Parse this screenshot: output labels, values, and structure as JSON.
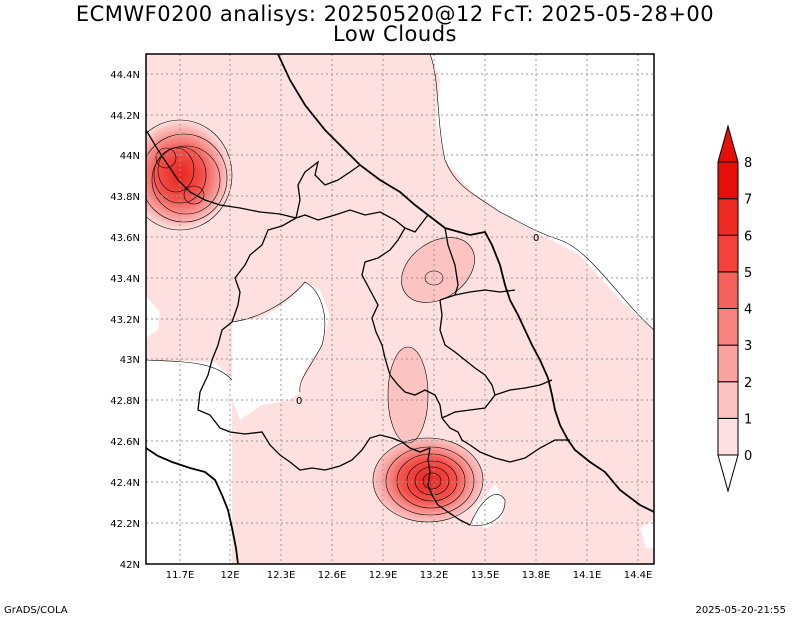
{
  "title_line1": "ECMWF0200 analisys: 20250520@12 FcT: 2025-05-28+00",
  "title_line2": "Low Clouds",
  "footer_left": "GrADS/COLA",
  "footer_right": "2025-05-20-21:55",
  "lat_labels": [
    "42N",
    "42.2N",
    "42.4N",
    "42.6N",
    "42.8N",
    "43N",
    "43.2N",
    "43.4N",
    "43.6N",
    "43.8N",
    "44N",
    "44.2N",
    "44.4N"
  ],
  "lon_labels": [
    "11.7E",
    "12E",
    "12.3E",
    "12.6E",
    "12.9E",
    "13.2E",
    "13.5E",
    "13.8E",
    "14.1E",
    "14.4E"
  ],
  "contour_labels": [
    "0",
    "0"
  ],
  "colorbar": {
    "levels": [
      "0",
      "1",
      "2",
      "3",
      "4",
      "5",
      "6",
      "7",
      "8"
    ],
    "colors": [
      "#ffffff",
      "#fde0df",
      "#fbc3c1",
      "#f9a3a0",
      "#f7827e",
      "#f5625d",
      "#f3423c",
      "#ee2a22",
      "#e60f0a"
    ]
  },
  "colors": {
    "field_low": "#fde0df",
    "field_mid": "#f9b4b1",
    "field_high": "#f3423c",
    "gridline": "#9a9a9a",
    "border": "#000000"
  }
}
